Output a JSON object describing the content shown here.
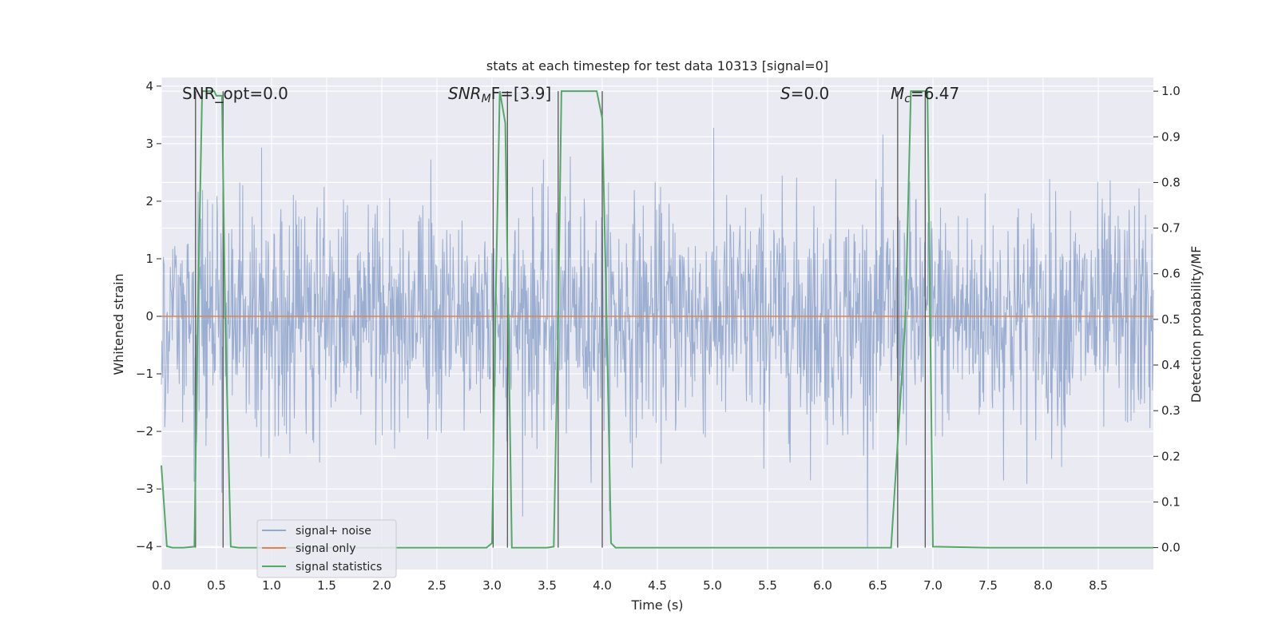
{
  "chart_data": {
    "type": "line",
    "title": "stats at each timestep for test data 10313 [signal=0]",
    "xlabel": "Time (s)",
    "ylabel": "Whitened strain",
    "y2label": "Detection probability/MF",
    "xlim": [
      0,
      9.0
    ],
    "ylim": [
      -4.4,
      4.15
    ],
    "y2lim": [
      -0.048,
      1.03
    ],
    "xticks": [
      "0.0",
      "0.5",
      "1.0",
      "1.5",
      "2.0",
      "2.5",
      "3.0",
      "3.5",
      "4.0",
      "4.5",
      "5.0",
      "5.5",
      "6.0",
      "6.5",
      "7.0",
      "7.5",
      "8.0",
      "8.5"
    ],
    "yticks": [
      "4",
      "3",
      "2",
      "1",
      "0",
      "−1",
      "−2",
      "−3",
      "−4"
    ],
    "y2ticks": [
      "1.0",
      "0.9",
      "0.8",
      "0.7",
      "0.6",
      "0.5",
      "0.4",
      "0.3",
      "0.2",
      "0.1",
      "0.0"
    ],
    "grid": true,
    "legend_position": "lower-left",
    "annotations": {
      "snr_opt": "SNR_opt=0.0",
      "snr_mf_main": "SNR",
      "snr_mf_sub": "M",
      "snr_mf_rest": "F=[3.9]",
      "s_main": "S",
      "s_rest": "=0.0",
      "mc_main": "M",
      "mc_sub": "c",
      "mc_rest": "=6.47"
    },
    "series": [
      {
        "name": "signal+ noise",
        "color": "#4c72b0",
        "kind": "noise",
        "mean": 0.0,
        "std": 1.0,
        "samples": 2000
      },
      {
        "name": "signal only",
        "color": "#dd8452",
        "kind": "constant",
        "value": 0.0
      },
      {
        "name": "signal statistics",
        "color": "#55a868",
        "axis": "right",
        "x": [
          0.0,
          0.05,
          0.1,
          0.2,
          0.3,
          0.33,
          0.37,
          0.48,
          0.5,
          0.55,
          0.58,
          0.63,
          0.7,
          1.0,
          1.5,
          2.0,
          2.5,
          2.95,
          3.0,
          3.03,
          3.07,
          3.12,
          3.18,
          3.22,
          3.5,
          3.56,
          3.6,
          3.63,
          3.68,
          3.95,
          4.0,
          4.04,
          4.08,
          4.12,
          5.0,
          6.0,
          6.62,
          6.75,
          6.8,
          6.95,
          7.0,
          7.5,
          8.0,
          8.5,
          9.0
        ],
        "y": [
          0.18,
          0.003,
          0.0,
          0.0,
          0.002,
          0.5,
          1.0,
          1.0,
          0.99,
          0.99,
          0.5,
          0.002,
          0.0,
          0.0,
          0.0,
          0.0,
          0.0,
          0.0,
          0.01,
          0.5,
          1.0,
          0.93,
          0.0,
          0.0,
          0.0,
          0.002,
          0.5,
          1.0,
          1.0,
          1.0,
          0.94,
          0.5,
          0.01,
          0.0,
          0.0,
          0.0,
          0.0,
          0.5,
          1.0,
          1.0,
          0.002,
          0.0,
          0.0,
          0.0,
          0.0
        ]
      }
    ],
    "vlines": [
      0.31,
      0.56,
      3.01,
      3.14,
      3.6,
      4.0,
      6.68,
      6.93
    ]
  }
}
